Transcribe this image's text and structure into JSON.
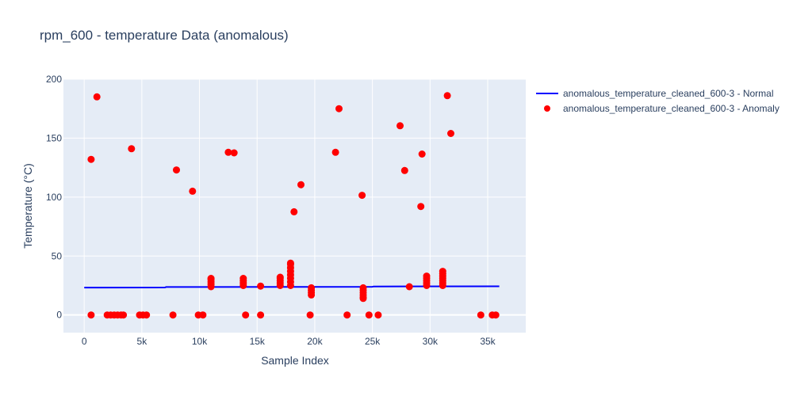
{
  "chart_data": {
    "type": "scatter",
    "title": "rpm_600 - temperature Data (anomalous)",
    "xlabel": "Sample Index",
    "ylabel": "Temperature (°C)",
    "xlim": [
      -1800,
      38300
    ],
    "ylim": [
      -15,
      200
    ],
    "x_ticks": [
      0,
      5000,
      10000,
      15000,
      20000,
      25000,
      30000,
      35000
    ],
    "x_tick_labels": [
      "0",
      "5k",
      "10k",
      "15k",
      "20k",
      "25k",
      "30k",
      "35k"
    ],
    "y_ticks": [
      0,
      50,
      100,
      150,
      200
    ],
    "y_tick_labels": [
      "0",
      "50",
      "100",
      "150",
      "200"
    ],
    "grid": true,
    "legend_position": "top-right-outside",
    "colors": {
      "plot_bg": "#E5ECF6",
      "grid": "#ffffff",
      "normal": "#0000ff",
      "anomaly": "#ff0000",
      "text": "#2a3f5f"
    },
    "series": [
      {
        "name": "anomalous_temperature_cleaned_600-3 - Normal",
        "mode": "line",
        "x": [
          0,
          7000,
          7100,
          25000,
          25100,
          36000
        ],
        "y": [
          23.2,
          23.3,
          23.7,
          23.9,
          24.2,
          24.3
        ]
      },
      {
        "name": "anomalous_temperature_cleaned_600-3 - Anomaly",
        "mode": "markers",
        "points": [
          [
            600,
            132
          ],
          [
            1100,
            185
          ],
          [
            4100,
            141
          ],
          [
            8000,
            123
          ],
          [
            9400,
            105
          ],
          [
            12500,
            138
          ],
          [
            13000,
            137.5
          ],
          [
            18200,
            87.5
          ],
          [
            18800,
            110.5
          ],
          [
            21800,
            138
          ],
          [
            22100,
            175
          ],
          [
            24100,
            101.5
          ],
          [
            27400,
            160.5
          ],
          [
            27800,
            122.5
          ],
          [
            29200,
            92
          ],
          [
            29300,
            136.5
          ],
          [
            31500,
            186
          ],
          [
            31800,
            154
          ],
          [
            600,
            0
          ],
          [
            2000,
            0
          ],
          [
            2300,
            0
          ],
          [
            2600,
            0
          ],
          [
            2900,
            0
          ],
          [
            3200,
            0
          ],
          [
            3400,
            0
          ],
          [
            4800,
            0
          ],
          [
            5100,
            0
          ],
          [
            5400,
            0
          ],
          [
            7700,
            0
          ],
          [
            9900,
            0
          ],
          [
            10300,
            0
          ],
          [
            14000,
            0
          ],
          [
            15300,
            0
          ],
          [
            19600,
            0
          ],
          [
            22800,
            0
          ],
          [
            24700,
            0
          ],
          [
            25500,
            0
          ],
          [
            34400,
            0
          ],
          [
            35400,
            0
          ],
          [
            35700,
            0
          ],
          [
            11000,
            24
          ],
          [
            11000,
            26
          ],
          [
            11000,
            28
          ],
          [
            11000,
            30
          ],
          [
            11000,
            31
          ],
          [
            13800,
            25
          ],
          [
            13800,
            27
          ],
          [
            13800,
            29
          ],
          [
            13800,
            31
          ],
          [
            15300,
            24.5
          ],
          [
            17000,
            25
          ],
          [
            17000,
            27
          ],
          [
            17000,
            29
          ],
          [
            17000,
            31
          ],
          [
            17000,
            32
          ],
          [
            17900,
            25
          ],
          [
            17900,
            28
          ],
          [
            17900,
            31
          ],
          [
            17900,
            34
          ],
          [
            17900,
            37
          ],
          [
            17900,
            40
          ],
          [
            17900,
            43
          ],
          [
            17900,
            44
          ],
          [
            19700,
            23
          ],
          [
            19700,
            21
          ],
          [
            19700,
            19
          ],
          [
            19700,
            17
          ],
          [
            24200,
            23
          ],
          [
            24200,
            21
          ],
          [
            24200,
            19
          ],
          [
            24200,
            17
          ],
          [
            24200,
            15
          ],
          [
            24200,
            14
          ],
          [
            28200,
            24
          ],
          [
            29700,
            25
          ],
          [
            29700,
            27
          ],
          [
            29700,
            29
          ],
          [
            29700,
            31
          ],
          [
            29700,
            33
          ],
          [
            31100,
            25
          ],
          [
            31100,
            27
          ],
          [
            31100,
            29
          ],
          [
            31100,
            31
          ],
          [
            31100,
            33
          ],
          [
            31100,
            35
          ],
          [
            31100,
            37
          ]
        ]
      }
    ]
  }
}
